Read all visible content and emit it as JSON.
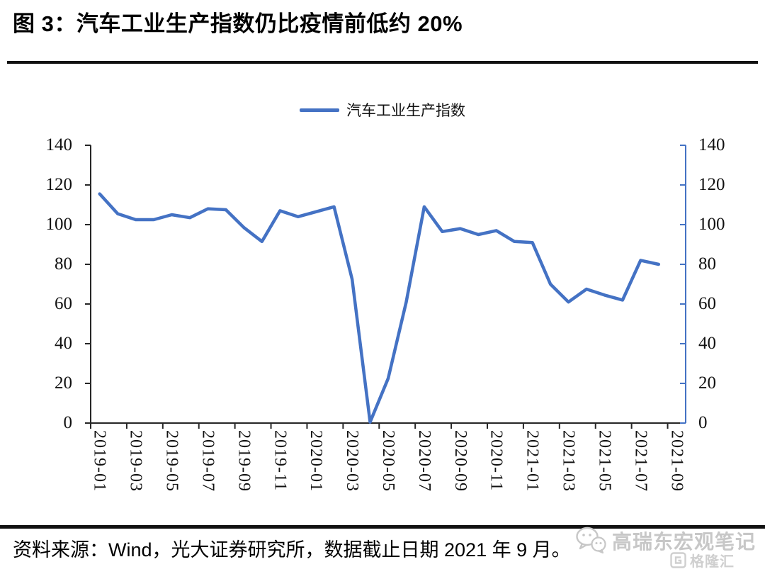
{
  "header": {
    "title": "图 3：汽车工业生产指数仍比疫情前低约 20%"
  },
  "footer": {
    "source_note": "资料来源：Wind，光大证券研究所，数据截止日期 2021 年 9 月。",
    "watermark_name": "高瑞东宏观笔记",
    "gelonghui_text": "格隆汇"
  },
  "chart_data": {
    "type": "line",
    "title": "",
    "xlabel": "",
    "ylabel": "",
    "grid": false,
    "legend_position": "top-center",
    "dual_y_axis": true,
    "ylim": [
      0,
      140
    ],
    "ytick_interval": 20,
    "yticks": [
      0,
      20,
      40,
      60,
      80,
      100,
      120,
      140
    ],
    "line_color": "#4472C4",
    "axis_color": "#262626",
    "right_axis_color": "#4472C4",
    "x": [
      "2019-01",
      "2019-02",
      "2019-03",
      "2019-04",
      "2019-05",
      "2019-06",
      "2019-07",
      "2019-08",
      "2019-09",
      "2019-10",
      "2019-11",
      "2019-12",
      "2020-01",
      "2020-02",
      "2020-03",
      "2020-04",
      "2020-05",
      "2020-06",
      "2020-07",
      "2020-08",
      "2020-09",
      "2020-10",
      "2020-11",
      "2020-12",
      "2021-01",
      "2021-02",
      "2021-03",
      "2021-04",
      "2021-05",
      "2021-06",
      "2021-07",
      "2021-08",
      "2021-09"
    ],
    "xtick_labels": [
      "2019-01",
      "2019-03",
      "2019-05",
      "2019-07",
      "2019-09",
      "2019-11",
      "2020-01",
      "2020-03",
      "2020-05",
      "2020-07",
      "2020-09",
      "2020-11",
      "2021-01",
      "2021-03",
      "2021-05",
      "2021-07",
      "2021-09"
    ],
    "series": [
      {
        "name": "汽车工业生产指数",
        "values": [
          115.5,
          105.5,
          102.5,
          102.5,
          105,
          103.5,
          108,
          107.5,
          98.5,
          91.5,
          107,
          104,
          106.5,
          109,
          72.5,
          0.5,
          22.5,
          61,
          109,
          96.5,
          98,
          95,
          97,
          91.5,
          91,
          70,
          61,
          67.5,
          64.5,
          62,
          82,
          80,
          null
        ]
      }
    ]
  }
}
